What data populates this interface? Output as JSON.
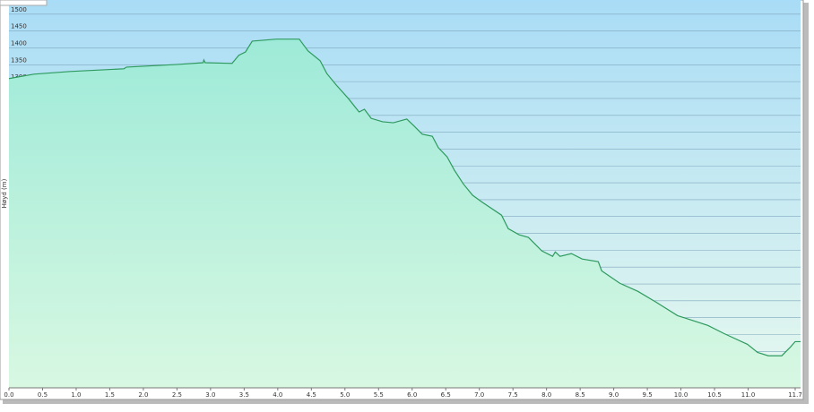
{
  "chart_data": {
    "type": "area",
    "ylabel": "Høyd (m)",
    "x": [
      0,
      0.37,
      0.91,
      1.71,
      1.75,
      2.51,
      2.89,
      2.9,
      2.92,
      3.32,
      3.42,
      3.52,
      3.62,
      3.98,
      4.32,
      4.45,
      4.63,
      4.73,
      4.87,
      5.05,
      5.21,
      5.29,
      5.39,
      5.56,
      5.72,
      5.92,
      6.02,
      6.15,
      6.3,
      6.39,
      6.52,
      6.63,
      6.76,
      6.9,
      7.03,
      7.33,
      7.43,
      7.59,
      7.73,
      7.93,
      8.09,
      8.13,
      8.2,
      8.37,
      8.53,
      8.77,
      8.82,
      9.09,
      9.36,
      9.63,
      9.95,
      10.4,
      10.64,
      10.99,
      11.14,
      11.3,
      11.5,
      11.63,
      11.7,
      11.78
    ],
    "series": [
      {
        "color": "#2e9a5e",
        "values": [
          1309,
          1322,
          1330,
          1338,
          1343,
          1351,
          1356,
          1364,
          1356,
          1354,
          1378,
          1388,
          1420,
          1426,
          1426,
          1391,
          1362,
          1324,
          1290,
          1250,
          1210,
          1218,
          1191,
          1181,
          1178,
          1189,
          1170,
          1144,
          1138,
          1104,
          1077,
          1037,
          997,
          963,
          944,
          904,
          864,
          846,
          838,
          798,
          782,
          795,
          782,
          790,
          774,
          766,
          739,
          702,
          678,
          646,
          606,
          577,
          553,
          521,
          497,
          487,
          487,
          513,
          529,
          529
        ]
      }
    ],
    "xlim": [
      0,
      11.78
    ],
    "ylim": [
      392,
      1542
    ],
    "xticks": [
      {
        "value": 0,
        "label": "0.0"
      },
      0.5,
      {
        "value": 1,
        "label": "1.0"
      },
      1.5,
      {
        "value": 2,
        "label": "2.0"
      },
      2.5,
      {
        "value": 3,
        "label": "3.0"
      },
      3.5,
      {
        "value": 4,
        "label": "4.0"
      },
      4.5,
      {
        "value": 5,
        "label": "5.0"
      },
      5.5,
      {
        "value": 6,
        "label": "6.0"
      },
      6.5,
      {
        "value": 7,
        "label": "7.0"
      },
      7.5,
      {
        "value": 8,
        "label": "8.0"
      },
      8.5,
      {
        "value": 9,
        "label": "9.0"
      },
      9.5,
      {
        "value": 10,
        "label": "10.0"
      },
      10.5,
      {
        "value": 11,
        "label": "11.0"
      },
      11.7
    ],
    "yticks": [
      450,
      500,
      550,
      600,
      650,
      700,
      750,
      800,
      850,
      900,
      950,
      1000,
      1050,
      1100,
      1150,
      1200,
      1250,
      1300,
      1350,
      1400,
      1450,
      1500
    ],
    "grid": true
  }
}
